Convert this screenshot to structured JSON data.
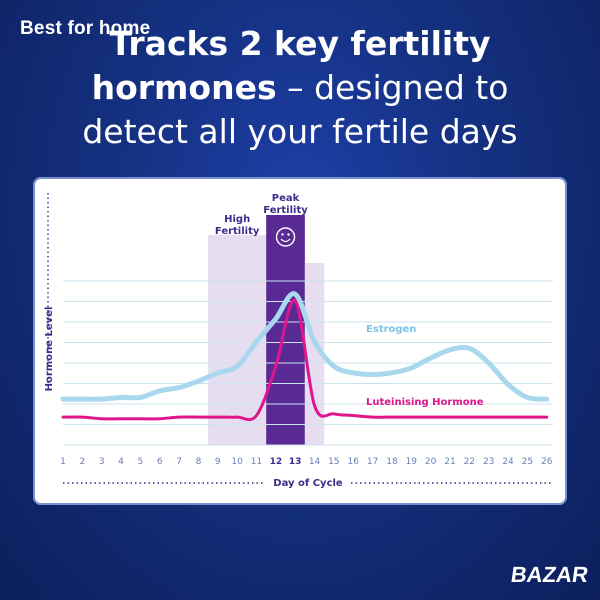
{
  "watermark": "Best for home",
  "headline": {
    "line1": "Tracks 2 key fertility",
    "line2_bold": "hormones",
    "line2_rest": " – designed to",
    "line3": "detect all your fertile days"
  },
  "brand": "BAZAR",
  "colors": {
    "background": "#14307f",
    "estrogen": "#a9d8ee",
    "lh": "#e0158c",
    "high_fertility": "#e6def0",
    "peak_fertility": "#5a2a94",
    "axis_text": "#3f2a8a",
    "grid": "#cbe3ef"
  },
  "chart_data": {
    "type": "line",
    "x": [
      1,
      2,
      3,
      4,
      5,
      6,
      7,
      8,
      9,
      10,
      11,
      12,
      13,
      14,
      15,
      16,
      17,
      18,
      19,
      20,
      21,
      22,
      23,
      24,
      25,
      26
    ],
    "xlabel": "Day of Cycle",
    "ylabel": "Hormone Level",
    "ylim": [
      0,
      100
    ],
    "x_range": [
      0.5,
      26.5
    ],
    "highlights": [
      {
        "label_line1": "High",
        "label_line2": "Fertility",
        "from_day": 9,
        "to_day": 11
      },
      {
        "label_line1": "Peak",
        "label_line2": "Fertility",
        "from_day": 12,
        "to_day": 13,
        "icon": "smiley-icon"
      },
      {
        "from_day": 14,
        "to_day": 14
      }
    ],
    "series": [
      {
        "name": "Estrogen",
        "values": [
          28,
          28,
          28,
          29,
          29,
          33,
          35,
          39,
          44,
          48,
          63,
          77,
          92,
          63,
          48,
          44,
          43,
          44,
          47,
          53,
          58,
          59,
          50,
          37,
          29,
          28
        ]
      },
      {
        "name": "Luteinising Hormone",
        "values": [
          17,
          17,
          16,
          16,
          16,
          16,
          17,
          17,
          17,
          17,
          18,
          48,
          88,
          24,
          19,
          18,
          17,
          17,
          17,
          17,
          17,
          17,
          17,
          17,
          17,
          17
        ]
      }
    ],
    "grid": true,
    "legend": "inline labels"
  }
}
